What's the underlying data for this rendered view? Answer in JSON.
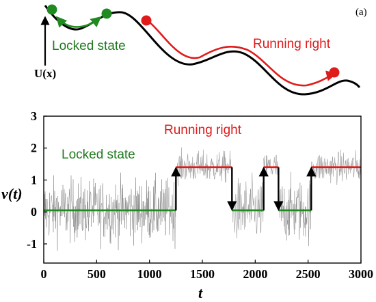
{
  "panel_label": "(a)",
  "schematic": {
    "potential_label": "U(x)",
    "locked_label": "Locked state",
    "running_label": "Running right",
    "colors": {
      "locked": "#1f8a1f",
      "running": "#e01b1b",
      "potential": "#000000"
    }
  },
  "chart_data": {
    "type": "line",
    "xlabel": "t",
    "ylabel": "v(t)",
    "xlim": [
      0,
      3000
    ],
    "ylim": [
      -1.6,
      3
    ],
    "x_ticks": [
      0,
      500,
      1000,
      1500,
      2000,
      2500,
      3000
    ],
    "y_ticks": [
      -1,
      0,
      1,
      2,
      3
    ],
    "x_tick_labels": [
      "0",
      "500",
      "1000",
      "1500",
      "2000",
      "2500",
      "3000"
    ],
    "y_tick_labels": [
      "-1",
      "0",
      "1",
      "2",
      "3"
    ],
    "annotations": {
      "locked": "Locked state",
      "running": "Running right"
    },
    "segments": [
      {
        "state": "locked",
        "t_start": 0,
        "t_end": 1250,
        "mean": 0.05,
        "noise_min": -1.3,
        "noise_max": 1.45
      },
      {
        "state": "running",
        "t_start": 1250,
        "t_end": 1780,
        "mean": 1.4,
        "noise_min": 0.7,
        "noise_max": 2.2
      },
      {
        "state": "locked",
        "t_start": 1780,
        "t_end": 2080,
        "mean": 0.05,
        "noise_min": -1.3,
        "noise_max": 1.45
      },
      {
        "state": "running",
        "t_start": 2080,
        "t_end": 2220,
        "mean": 1.4,
        "noise_min": 0.7,
        "noise_max": 2.2
      },
      {
        "state": "locked",
        "t_start": 2220,
        "t_end": 2530,
        "mean": 0.05,
        "noise_min": -1.3,
        "noise_max": 1.45
      },
      {
        "state": "running",
        "t_start": 2530,
        "t_end": 3000,
        "mean": 1.4,
        "noise_min": 0.7,
        "noise_max": 2.2
      }
    ],
    "transitions": [
      {
        "t": 1250,
        "direction": "up"
      },
      {
        "t": 1780,
        "direction": "down"
      },
      {
        "t": 2080,
        "direction": "up"
      },
      {
        "t": 2220,
        "direction": "down"
      },
      {
        "t": 2530,
        "direction": "up"
      }
    ],
    "colors": {
      "trace": "#8c8c8c",
      "locked_mean": "#1f8a1f",
      "running_mean": "#e01b1b",
      "arrow": "#000000"
    }
  }
}
